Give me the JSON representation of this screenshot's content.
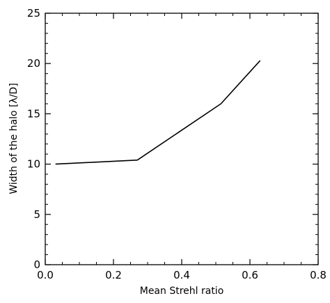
{
  "chart_data": {
    "type": "line",
    "title": "",
    "xlabel": "Mean Strehl ratio",
    "ylabel": "Width of the halo [λ/D]",
    "xlim": [
      0.0,
      0.8
    ],
    "ylim": [
      0,
      25
    ],
    "x_ticks": [
      0.0,
      0.2,
      0.4,
      0.6,
      0.8
    ],
    "x_tick_labels": [
      "0.0",
      "0.2",
      "0.4",
      "0.6",
      "0.8"
    ],
    "y_ticks": [
      0,
      5,
      10,
      15,
      20,
      25
    ],
    "y_tick_labels": [
      "0",
      "5",
      "10",
      "15",
      "20",
      "25"
    ],
    "grid": false,
    "series": [
      {
        "x": [
          0.03,
          0.27,
          0.515,
          0.63
        ],
        "y": [
          10.0,
          10.4,
          16.0,
          20.3
        ],
        "color": "#000000"
      }
    ]
  }
}
